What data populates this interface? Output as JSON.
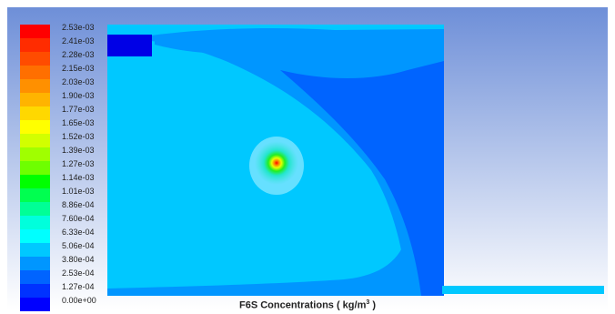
{
  "colors": {
    "background_top": "#6e8fd8",
    "background_bottom": "#ffffff",
    "field_light_cyan": "#00c8ff",
    "field_mid_blue": "#0096ff",
    "field_deep_blue": "#0064ff",
    "inlet_blue": "#0000e6",
    "ring_light": "#66e0ff",
    "ring_cyan": "#22e6cc",
    "ring_green": "#22ee22",
    "ring_yellow": "#e6ff00",
    "ring_orange": "#ff8000",
    "core_red": "#ff0000"
  },
  "legend": {
    "levels": [
      {
        "label": "2.53e-03",
        "color": "#ff0000"
      },
      {
        "label": "2.41e-03",
        "color": "#ff2c00"
      },
      {
        "label": "2.28e-03",
        "color": "#ff4c00"
      },
      {
        "label": "2.15e-03",
        "color": "#ff6f00"
      },
      {
        "label": "2.03e-03",
        "color": "#ff9000"
      },
      {
        "label": "1.90e-03",
        "color": "#ffb400"
      },
      {
        "label": "1.77e-03",
        "color": "#ffd800"
      },
      {
        "label": "1.65e-03",
        "color": "#ffff00"
      },
      {
        "label": "1.52e-03",
        "color": "#d2ff00"
      },
      {
        "label": "1.39e-03",
        "color": "#a0ff00"
      },
      {
        "label": "1.27e-03",
        "color": "#6eff00"
      },
      {
        "label": "1.14e-03",
        "color": "#00ff00"
      },
      {
        "label": "1.01e-03",
        "color": "#00ff50"
      },
      {
        "label": "8.86e-04",
        "color": "#00ff96"
      },
      {
        "label": "7.60e-04",
        "color": "#00ffdc"
      },
      {
        "label": "6.33e-04",
        "color": "#00ffff"
      },
      {
        "label": "5.06e-04",
        "color": "#00c8ff"
      },
      {
        "label": "3.80e-04",
        "color": "#0096ff"
      },
      {
        "label": "2.53e-04",
        "color": "#0064ff"
      },
      {
        "label": "1.27e-04",
        "color": "#0032ff"
      },
      {
        "label": "0.00e+00",
        "color": "#0000ff"
      }
    ]
  },
  "caption": {
    "prefix": "F6S Concentrations ( kg/m",
    "exponent": "3",
    "suffix": " )"
  }
}
